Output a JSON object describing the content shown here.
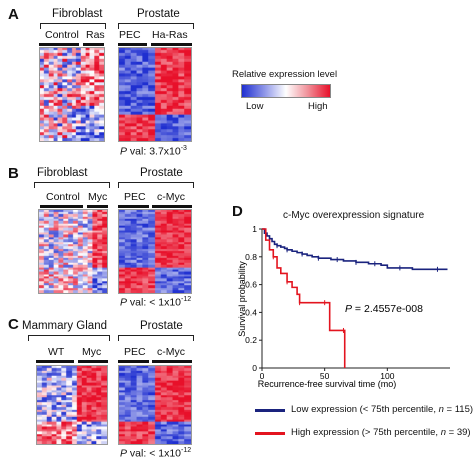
{
  "panels": {
    "A": {
      "letter": "A",
      "left_group": "Fibroblast",
      "left_subs": [
        "Control",
        "Ras"
      ],
      "right_group": "Prostate",
      "right_subs": [
        "PEC",
        "Ha-Ras"
      ],
      "pval_prefix": "P",
      "pval_text": " val: 3.7x10",
      "pval_exp": "-3"
    },
    "B": {
      "letter": "B",
      "left_group": "Fibroblast",
      "left_subs": [
        "Control",
        "Myc"
      ],
      "right_group": "Prostate",
      "right_subs": [
        "PEC",
        "c-Myc"
      ],
      "pval_prefix": "P",
      "pval_text": " val: < 1x10",
      "pval_exp": "-12"
    },
    "C": {
      "letter": "C",
      "left_group": "Mammary Gland",
      "left_subs": [
        "WT",
        "Myc"
      ],
      "right_group": "Prostate",
      "right_subs": [
        "PEC",
        "c-Myc"
      ],
      "pval_prefix": "P",
      "pval_text": " val: < 1x10",
      "pval_exp": "-12"
    }
  },
  "color_legend": {
    "title": "Relative expression level",
    "low": "Low",
    "high": "High",
    "colors": [
      "#1f2fd0",
      "#ffffff",
      "#e8102a"
    ]
  },
  "chart_data": {
    "type": "line",
    "letter": "D",
    "title": "c-Myc overexpression signature",
    "xlabel": "Recurrence-free survival time (mo)",
    "ylabel": "Survival probability",
    "xlim": [
      0,
      150
    ],
    "ylim": [
      0,
      1
    ],
    "x_ticks": [
      "0",
      "50",
      "100"
    ],
    "y_ticks": [
      "0",
      "0.2",
      "0.4",
      "0.6",
      "0.8",
      "1"
    ],
    "annotation_prefix": "P",
    "annotation_value": " = 2.4557e-008",
    "series": [
      {
        "name": "Low expression (< 75th percentile, n = 115)",
        "legend_text": "Low expression (< 75th percentile, ",
        "legend_n_label": "n",
        "legend_n_value": " = 115)",
        "color": "#1a237e",
        "x": [
          0,
          2,
          4,
          6,
          8,
          10,
          12,
          15,
          18,
          20,
          24,
          28,
          32,
          36,
          40,
          45,
          50,
          55,
          60,
          65,
          70,
          75,
          80,
          85,
          90,
          95,
          100,
          110,
          120,
          130,
          140,
          148
        ],
        "y": [
          1.0,
          0.97,
          0.95,
          0.93,
          0.91,
          0.89,
          0.88,
          0.87,
          0.86,
          0.85,
          0.84,
          0.83,
          0.82,
          0.81,
          0.8,
          0.79,
          0.79,
          0.78,
          0.78,
          0.77,
          0.77,
          0.76,
          0.76,
          0.75,
          0.75,
          0.74,
          0.72,
          0.72,
          0.71,
          0.71,
          0.71,
          0.71
        ]
      },
      {
        "name": "High expression (> 75th percentile, n = 39)",
        "legend_text": "High expression (> 75th percentile, ",
        "legend_n_label": "n",
        "legend_n_value": " = 39)",
        "color": "#e3141f",
        "x": [
          0,
          3,
          6,
          9,
          12,
          15,
          20,
          24,
          28,
          30,
          36,
          44,
          50,
          54,
          60,
          65,
          66
        ],
        "y": [
          1.0,
          0.92,
          0.85,
          0.8,
          0.72,
          0.68,
          0.62,
          0.58,
          0.53,
          0.47,
          0.47,
          0.47,
          0.47,
          0.27,
          0.27,
          0.27,
          0.0
        ]
      }
    ]
  }
}
